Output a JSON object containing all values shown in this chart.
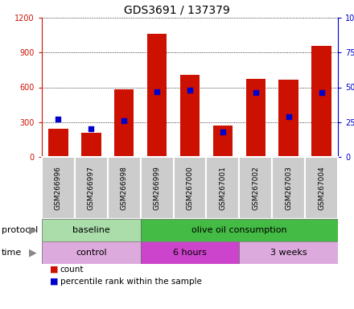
{
  "title": "GDS3691 / 137379",
  "samples": [
    "GSM266996",
    "GSM266997",
    "GSM266998",
    "GSM266999",
    "GSM267000",
    "GSM267001",
    "GSM267002",
    "GSM267003",
    "GSM267004"
  ],
  "counts": [
    245,
    210,
    585,
    1060,
    710,
    270,
    670,
    665,
    960
  ],
  "percentile_ranks": [
    27,
    20,
    26,
    47,
    48,
    18,
    46,
    29,
    46
  ],
  "ylim_left": [
    0,
    1200
  ],
  "ylim_right": [
    0,
    100
  ],
  "yticks_left": [
    0,
    300,
    600,
    900,
    1200
  ],
  "yticks_right": [
    0,
    25,
    50,
    75,
    100
  ],
  "bar_color": "#cc1100",
  "dot_color": "#0000cc",
  "protocol_groups": [
    {
      "label": "baseline",
      "start": 0,
      "end": 3,
      "color": "#aaddaa"
    },
    {
      "label": "olive oil consumption",
      "start": 3,
      "end": 9,
      "color": "#44bb44"
    }
  ],
  "time_groups": [
    {
      "label": "control",
      "start": 0,
      "end": 3,
      "color": "#ddaadd"
    },
    {
      "label": "6 hours",
      "start": 3,
      "end": 6,
      "color": "#cc44cc"
    },
    {
      "label": "3 weeks",
      "start": 6,
      "end": 9,
      "color": "#ddaadd"
    }
  ],
  "legend_items": [
    {
      "label": "count",
      "color": "#cc1100"
    },
    {
      "label": "percentile rank within the sample",
      "color": "#0000cc"
    }
  ],
  "xticklabel_bg": "#cccccc",
  "xticklabel_border": "#999999"
}
